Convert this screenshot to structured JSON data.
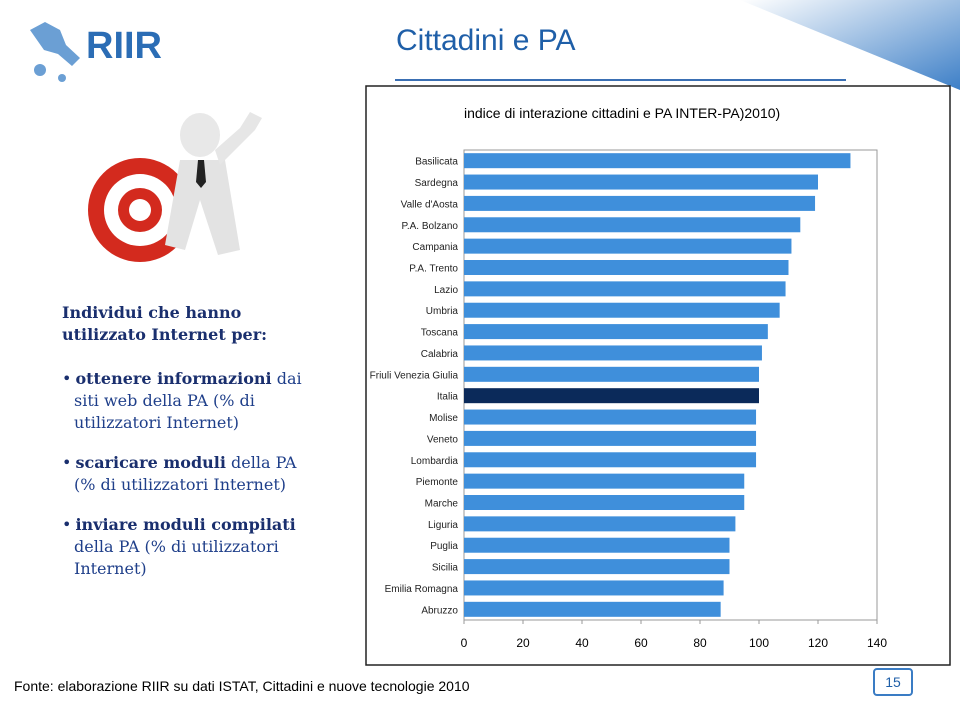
{
  "logo": "RIIR",
  "title": "Cittadini e PA",
  "left_panel": {
    "heading": "Individui che hanno utilizzato Internet per:",
    "items": [
      [
        {
          "bold": "ottenere informazioni"
        },
        {
          "text": " dai siti web della PA (% di utilizzatori Internet)"
        }
      ],
      [
        {
          "bold": "scaricare moduli"
        },
        {
          "text": " della PA (% di utilizzatori Internet)"
        }
      ],
      [
        {
          "bold": "inviare moduli compilati"
        },
        {
          "text": " della PA (% di utilizzatori Internet)"
        }
      ]
    ]
  },
  "chart_data": {
    "type": "hbar",
    "title": "indice di interazione cittadini e PA INTER-PA)2010)",
    "categories": [
      "Basilicata",
      "Sardegna",
      "Valle d'Aosta",
      "P.A. Bolzano",
      "Campania",
      "P.A. Trento",
      "Lazio",
      "Umbria",
      "Toscana",
      "Calabria",
      "Friuli Venezia Giulia",
      "Italia",
      "Molise",
      "Veneto",
      "Lombardia",
      "Piemonte",
      "Marche",
      "Liguria",
      "Puglia",
      "Sicilia",
      "Emilia Romagna",
      "Abruzzo"
    ],
    "values": [
      131,
      120,
      119,
      114,
      111,
      110,
      109,
      107,
      103,
      101,
      100,
      100,
      99,
      99,
      99,
      95,
      95,
      92,
      90,
      90,
      88,
      87
    ],
    "colors": [
      "#3f8fdb",
      "#3f8fdb",
      "#3f8fdb",
      "#3f8fdb",
      "#3f8fdb",
      "#3f8fdb",
      "#3f8fdb",
      "#3f8fdb",
      "#3f8fdb",
      "#3f8fdb",
      "#3f8fdb",
      "#0b2a5a",
      "#3f8fdb",
      "#3f8fdb",
      "#3f8fdb",
      "#3f8fdb",
      "#3f8fdb",
      "#3f8fdb",
      "#3f8fdb",
      "#3f8fdb",
      "#3f8fdb",
      "#3f8fdb"
    ],
    "xlim": [
      0,
      140
    ],
    "xticks": [
      0,
      20,
      40,
      60,
      80,
      100,
      120,
      140
    ],
    "grid": false
  },
  "footer": "Fonte: elaborazione RIIR su dati ISTAT, Cittadini e nuove tecnologie 2010",
  "page_number": "15"
}
